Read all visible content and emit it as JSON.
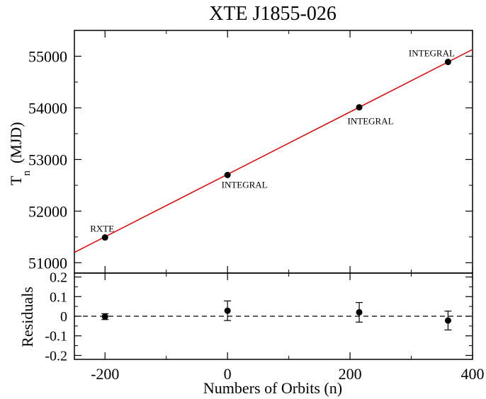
{
  "chart_data": [
    {
      "type": "scatter",
      "title": "XTE J1855-026",
      "ylabel_main": "T",
      "ylabel_sub": "n",
      "ylabel_unit": "(MJD)",
      "xlim": [
        -250,
        400
      ],
      "ylim": [
        50800,
        55500
      ],
      "y_ticks": [
        51000,
        52000,
        53000,
        54000,
        55000
      ],
      "points": [
        {
          "x": -200,
          "y": 51490,
          "label": "RXTE"
        },
        {
          "x": 0,
          "y": 52700,
          "label": "INTEGRAL"
        },
        {
          "x": 215,
          "y": 54010,
          "label": "INTEGRAL"
        },
        {
          "x": 360,
          "y": 54890,
          "label": "INTEGRAL"
        }
      ],
      "fit_line": {
        "color": "#e00000",
        "x": [
          -250,
          400
        ],
        "y": [
          51200,
          55130
        ]
      },
      "point_color": "#000000"
    },
    {
      "type": "scatter",
      "ylabel": "Residuals",
      "xlabel": "Numbers of Orbits (n)",
      "xlim": [
        -250,
        400
      ],
      "ylim": [
        -0.22,
        0.22
      ],
      "x_ticks": [
        -200,
        0,
        200,
        400
      ],
      "y_ticks": [
        -0.2,
        -0.1,
        0,
        0.1,
        0.2
      ],
      "y_tick_labels": [
        "-0.2",
        "-0.1",
        "0",
        "0.1",
        "0.2"
      ],
      "zero_line": 0,
      "points": [
        {
          "x": -200,
          "y": -0.002,
          "err": 0.015
        },
        {
          "x": 0,
          "y": 0.028,
          "err": 0.05
        },
        {
          "x": 215,
          "y": 0.02,
          "err": 0.05
        },
        {
          "x": 360,
          "y": -0.022,
          "err": 0.048
        }
      ]
    }
  ]
}
